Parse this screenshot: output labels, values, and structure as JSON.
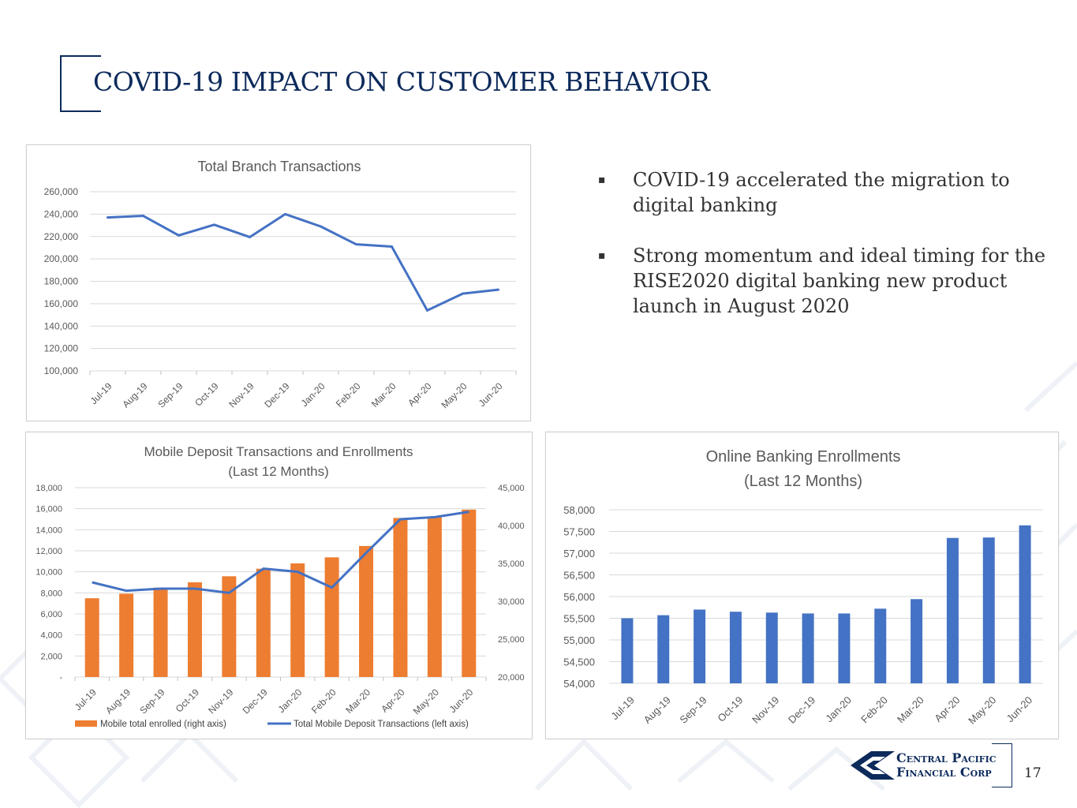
{
  "page": {
    "title": "COVID-19 IMPACT ON CUSTOMER BEHAVIOR",
    "page_number": "17",
    "accent_color": "#0c2a5b"
  },
  "bullets": [
    {
      "icon": "square-bullet-icon",
      "text": "COVID-19 accelerated the migration to digital banking"
    },
    {
      "icon": "square-bullet-icon",
      "text": "Strong momentum and ideal timing for the RISE2020 digital banking new product launch in August 2020"
    }
  ],
  "logo": {
    "line1": "Central Pacific",
    "line2": "Financial Corp",
    "icon": "diamond-logo-icon"
  },
  "chart_data": [
    {
      "id": "branch",
      "type": "line",
      "title": "Total Branch Transactions",
      "categories": [
        "Jul-19",
        "Aug-19",
        "Sep-19",
        "Oct-19",
        "Nov-19",
        "Dec-19",
        "Jan-20",
        "Feb-20",
        "Mar-20",
        "Apr-20",
        "May-20",
        "Jun-20"
      ],
      "series": [
        {
          "name": "Total Branch Transactions",
          "color": "#4472c4",
          "values": [
            237000,
            238500,
            221000,
            230500,
            219500,
            240000,
            229000,
            213000,
            211000,
            154000,
            169000,
            172500
          ]
        }
      ],
      "ylim": [
        100000,
        260000
      ],
      "yticks": [
        "100,000",
        "120,000",
        "140,000",
        "160,000",
        "180,000",
        "200,000",
        "220,000",
        "240,000",
        "260,000"
      ],
      "grid": true
    },
    {
      "id": "mobile",
      "type": "bar",
      "title": "Mobile Deposit Transactions and Enrollments",
      "subtitle": "(Last 12 Months)",
      "categories": [
        "Jul-19",
        "Aug-19",
        "Sep-19",
        "Oct-19",
        "Nov-19",
        "Dec-19",
        "Jan-20",
        "Feb-20",
        "Mar-20",
        "Apr-20",
        "May-20",
        "Jun-20"
      ],
      "series": [
        {
          "name": "Mobile total enrolled (right axis)",
          "type": "bar",
          "axis": "right",
          "color": "#ed7d31",
          "values": [
            30400,
            31000,
            31800,
            32500,
            33300,
            34300,
            35000,
            35800,
            37300,
            41000,
            41100,
            42100
          ]
        },
        {
          "name": "Total Mobile Deposit Transactions (left axis)",
          "type": "line",
          "axis": "left",
          "color": "#4472c4",
          "values": [
            9000,
            8200,
            8400,
            8400,
            8000,
            10300,
            10000,
            8500,
            11800,
            15000,
            15200,
            15700
          ]
        }
      ],
      "ylim_left": [
        0,
        18000
      ],
      "ylim_right": [
        20000,
        45000
      ],
      "yticks_left": [
        "-",
        "2,000",
        "4,000",
        "6,000",
        "8,000",
        "10,000",
        "12,000",
        "14,000",
        "16,000",
        "18,000"
      ],
      "yticks_right": [
        "20,000",
        "25,000",
        "30,000",
        "35,000",
        "40,000",
        "45,000"
      ],
      "grid": true,
      "legend": "bottom"
    },
    {
      "id": "online",
      "type": "bar",
      "title": "Online Banking Enrollments",
      "subtitle": "(Last 12 Months)",
      "categories": [
        "Jul-19",
        "Aug-19",
        "Sep-19",
        "Oct-19",
        "Nov-19",
        "Dec-19",
        "Jan-20",
        "Feb-20",
        "Mar-20",
        "Apr-20",
        "May-20",
        "Jun-20"
      ],
      "series": [
        {
          "name": "Online Banking Enrollments",
          "color": "#4472c4",
          "values": [
            55500,
            55570,
            55700,
            55650,
            55630,
            55610,
            55610,
            55720,
            55940,
            57350,
            57360,
            57640
          ]
        }
      ],
      "ylim": [
        54000,
        58000
      ],
      "yticks": [
        "54,000",
        "54,500",
        "55,000",
        "55,500",
        "56,000",
        "56,500",
        "57,000",
        "57,500",
        "58,000"
      ],
      "grid": true
    }
  ]
}
